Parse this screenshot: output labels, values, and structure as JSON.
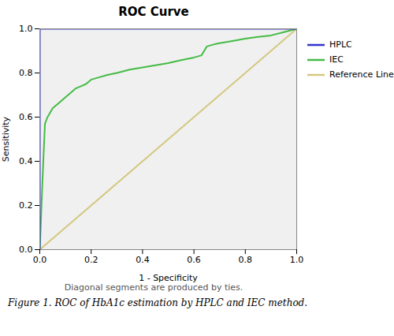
{
  "chart_data": {
    "type": "line",
    "title": "ROC Curve",
    "subtitle": "Diagonal segments are produced by ties.",
    "caption": "Figure 1. ROC of HbA1c estimation by HPLC and IEC method.",
    "x_label": "1 - Specificity",
    "y_label": "Sensitivity",
    "xlim": [
      0.0,
      1.0
    ],
    "ylim": [
      0.0,
      1.0
    ],
    "xticks": [
      {
        "value": 0.0,
        "label": "0.0"
      },
      {
        "value": 0.2,
        "label": "0.2"
      },
      {
        "value": 0.4,
        "label": "0.4"
      },
      {
        "value": 0.6,
        "label": "0.6"
      },
      {
        "value": 0.8,
        "label": "0.8"
      },
      {
        "value": 1.0,
        "label": "1.0"
      }
    ],
    "yticks": [
      {
        "value": 0.0,
        "label": "0.0"
      },
      {
        "value": 0.2,
        "label": "0.2"
      },
      {
        "value": 0.4,
        "label": "0.4"
      },
      {
        "value": 0.6,
        "label": "0.6"
      },
      {
        "value": 0.8,
        "label": "0.8"
      },
      {
        "value": 1.0,
        "label": "1.0"
      }
    ],
    "grid": false,
    "legend": "right",
    "series": [
      {
        "name": "HPLC",
        "color": "#3333CC",
        "x": [
          0.0,
          0.0,
          1.0
        ],
        "values": [
          0.0,
          1.0,
          1.0
        ]
      },
      {
        "name": "IEC",
        "color": "#44BB44",
        "x": [
          0.0,
          0.01,
          0.02,
          0.03,
          0.04,
          0.05,
          0.06,
          0.08,
          0.1,
          0.12,
          0.14,
          0.16,
          0.18,
          0.2,
          0.23,
          0.26,
          0.3,
          0.35,
          0.4,
          0.45,
          0.5,
          0.55,
          0.6,
          0.63,
          0.65,
          0.68,
          0.7,
          0.75,
          0.8,
          0.85,
          0.9,
          0.95,
          1.0
        ],
        "values": [
          0.0,
          0.3,
          0.57,
          0.6,
          0.62,
          0.64,
          0.65,
          0.67,
          0.69,
          0.71,
          0.73,
          0.74,
          0.75,
          0.77,
          0.78,
          0.79,
          0.8,
          0.815,
          0.825,
          0.835,
          0.845,
          0.858,
          0.87,
          0.88,
          0.92,
          0.93,
          0.935,
          0.945,
          0.955,
          0.963,
          0.97,
          0.985,
          1.0
        ]
      },
      {
        "name": "Reference Line",
        "color": "#D4C882",
        "x": [
          0.0,
          1.0
        ],
        "values": [
          0.0,
          1.0
        ]
      }
    ]
  }
}
